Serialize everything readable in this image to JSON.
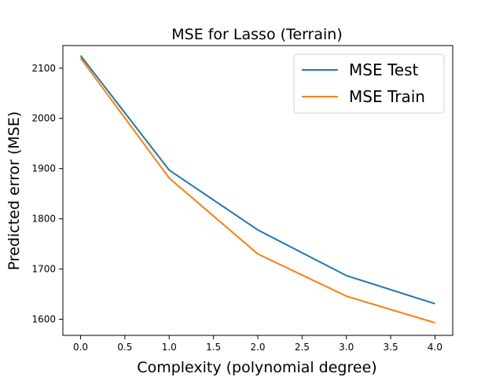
{
  "chart_data": {
    "type": "line",
    "title": "MSE for Lasso (Terrain)",
    "xlabel": "Complexity (polynomial degree)",
    "ylabel": "Predicted error (MSE)",
    "x": [
      0.0,
      1.0,
      2.0,
      3.0,
      4.0
    ],
    "xlim": [
      -0.2,
      4.2
    ],
    "ylim": [
      1568,
      2145
    ],
    "xticks": [
      0.0,
      0.5,
      1.0,
      1.5,
      2.0,
      2.5,
      3.0,
      3.5,
      4.0
    ],
    "xtick_labels": [
      "0.0",
      "0.5",
      "1.0",
      "1.5",
      "2.0",
      "2.5",
      "3.0",
      "3.5",
      "4.0"
    ],
    "yticks": [
      1600,
      1700,
      1800,
      1900,
      2000,
      2100
    ],
    "ytick_labels": [
      "1600",
      "1700",
      "1800",
      "1900",
      "2000",
      "2100"
    ],
    "grid": false,
    "legend_position": "top-right",
    "series": [
      {
        "name": "MSE Test",
        "color": "#1f77b4",
        "values": [
          2125,
          1897,
          1778,
          1687,
          1631
        ]
      },
      {
        "name": "MSE Train",
        "color": "#ff7f0e",
        "values": [
          2120,
          1881,
          1730,
          1646,
          1593
        ]
      }
    ]
  }
}
